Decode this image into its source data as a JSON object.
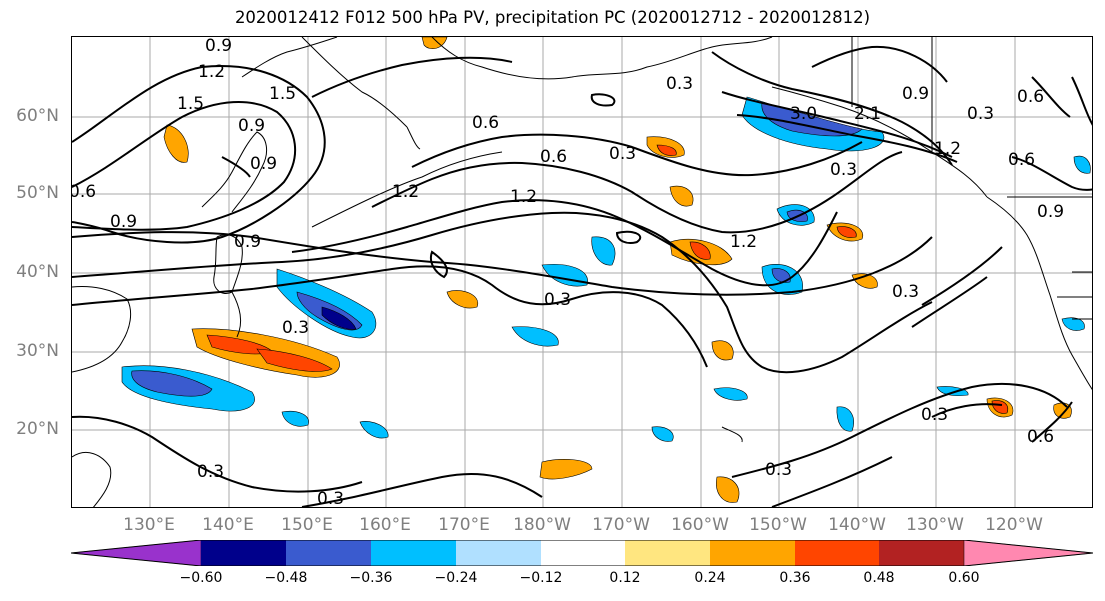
{
  "title": "2020012412 F012 500 hPa PV, precipitation PC (2020012712 - 2020012812)",
  "lat_labels": [
    "60°N",
    "50°N",
    "40°N",
    "30°N",
    "20°N"
  ],
  "lon_labels": [
    "130°E",
    "140°E",
    "150°E",
    "160°E",
    "170°E",
    "180°W",
    "170°W",
    "160°W",
    "150°W",
    "140°W",
    "130°W",
    "120°W"
  ],
  "contour_labels": [
    "0.9",
    "1.2",
    "1.5",
    "1.5",
    "0.6",
    "0.9",
    "0.9",
    "0.6",
    "0.6",
    "0.3",
    "1.2",
    "1.2",
    "0.9",
    "0.3",
    "0.3",
    "0.3",
    "1.2",
    "3.0",
    "0.9",
    "0.3",
    "0.3",
    "0.6",
    "0.6",
    "0.9",
    "0.3",
    "0.3",
    "0.3",
    "0.6",
    "0.3",
    "0.3",
    "1.2",
    "0.9",
    "2.1",
    "1.2"
  ],
  "colorbar": {
    "colors": [
      "#9932cc",
      "#00008b",
      "#3a5bcf",
      "#00bfff",
      "#b0e0ff",
      "#ffffff",
      "#ffe680",
      "#ffa500",
      "#ff4500",
      "#b22222",
      "#ff88b0"
    ],
    "tick_labels": [
      "−0.60",
      "−0.48",
      "−0.36",
      "−0.24",
      "−0.12",
      "0.12",
      "0.24",
      "0.36",
      "0.48",
      "0.60"
    ]
  }
}
